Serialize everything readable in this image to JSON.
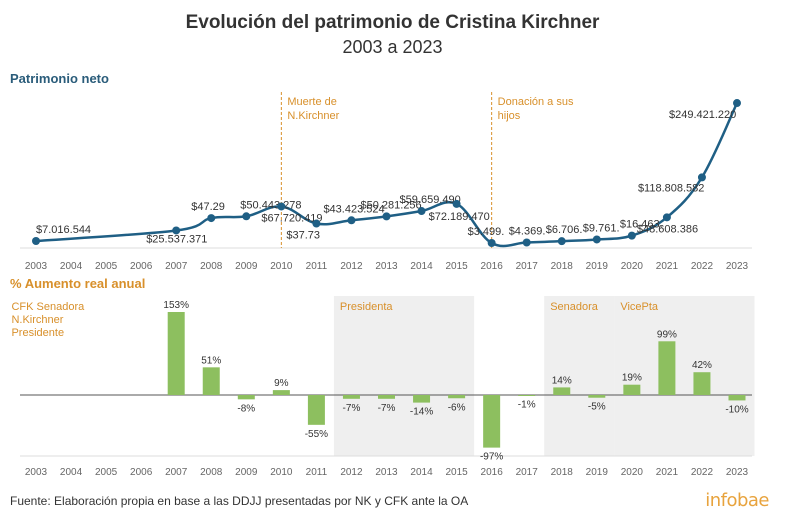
{
  "header": {
    "title": "Evolución del patrimonio de Cristina Kirchner",
    "subtitle": "2003 a 2023"
  },
  "footer": {
    "source": "Fuente: Elaboración propia en base a las DDJJ presentadas por NK y CFK ante la OA",
    "brand": "infobae"
  },
  "colors": {
    "line": "#1f5f85",
    "bar": "#8dbf5f",
    "accent": "#d8902b",
    "band": "#efefef"
  },
  "chart_data": [
    {
      "type": "line",
      "title": "Patrimonio neto",
      "x": [
        "2003",
        "2004",
        "2005",
        "2006",
        "2007",
        "2008",
        "2009",
        "2010",
        "2011",
        "2012",
        "2013",
        "2014",
        "2015",
        "2016",
        "2017",
        "2018",
        "2019",
        "2020",
        "2021",
        "2022",
        "2023"
      ],
      "points": [
        {
          "year": "2003",
          "value": 7016544,
          "label": "$7.016.544"
        },
        {
          "year": "2007",
          "value": 25537371,
          "label": "$25.537.371"
        },
        {
          "year": "2008",
          "value": 47291000,
          "label": "$47.29"
        },
        {
          "year": "2009",
          "value": 50443278,
          "label": "$50.443.278"
        },
        {
          "year": "2010",
          "value": 67720419,
          "label": "$67.720.419"
        },
        {
          "year": "2011",
          "value": 37731000,
          "label": "$37.73"
        },
        {
          "year": "2012",
          "value": 43423524,
          "label": "$43.423.524"
        },
        {
          "year": "2013",
          "value": 50281256,
          "label": "$50.281.256"
        },
        {
          "year": "2014",
          "value": 59659490,
          "label": "$59.659.490"
        },
        {
          "year": "2015",
          "value": 72189470,
          "label": "$72.189.470"
        },
        {
          "year": "2016",
          "value": 3499000,
          "label": "$3.499."
        },
        {
          "year": "2017",
          "value": 4369000,
          "label": "$4.369."
        },
        {
          "year": "2018",
          "value": 6706000,
          "label": "$6.706."
        },
        {
          "year": "2019",
          "value": 9761000,
          "label": "$9.761."
        },
        {
          "year": "2020",
          "value": 16463000,
          "label": "$16.463."
        },
        {
          "year": "2021",
          "value": 48608386,
          "label": "$48.608.386"
        },
        {
          "year": "2022",
          "value": 118808582,
          "label": "$118.808.582"
        },
        {
          "year": "2023",
          "value": 249421220,
          "label": "$249.421.220"
        }
      ],
      "ylim": [
        0,
        260000000
      ],
      "annotations": [
        {
          "year": "2010",
          "text": [
            "Muerte de",
            "N.Kirchner"
          ]
        },
        {
          "year": "2016",
          "text": [
            "Donación a sus",
            "hijos"
          ]
        }
      ]
    },
    {
      "type": "bar",
      "title": "% Aumento real anual",
      "categories": [
        "2003",
        "2004",
        "2005",
        "2006",
        "2007",
        "2008",
        "2009",
        "2010",
        "2011",
        "2012",
        "2013",
        "2014",
        "2015",
        "2016",
        "2017",
        "2018",
        "2019",
        "2020",
        "2021",
        "2022",
        "2023"
      ],
      "values": [
        null,
        null,
        null,
        null,
        153,
        51,
        -8,
        9,
        -55,
        -7,
        -7,
        -14,
        -6,
        -97,
        -1,
        14,
        -5,
        19,
        99,
        42,
        -10
      ],
      "labels": [
        "",
        "",
        "",
        "",
        "153%",
        "51%",
        "-8%",
        "9%",
        "-55%",
        "-7%",
        "-7%",
        "-14%",
        "-6%",
        "-97%",
        "-1%",
        "14%",
        "-5%",
        "19%",
        "99%",
        "42%",
        "-10%"
      ],
      "ylim": [
        -100,
        160
      ],
      "periods": [
        {
          "from": "2003",
          "to": "2007",
          "text": [
            "CFK Senadora",
            "N.Kirchner",
            "Presidente"
          ],
          "shaded": false
        },
        {
          "from": "2012",
          "to": "2015",
          "text": [
            "Presidenta"
          ],
          "shaded": true
        },
        {
          "from": "2018",
          "to": "2019",
          "text": [
            "Senadora"
          ],
          "shaded": true
        },
        {
          "from": "2020",
          "to": "2023",
          "text": [
            "VicePta"
          ],
          "shaded": true
        }
      ]
    }
  ],
  "sections": {
    "top_label": "Patrimonio neto",
    "bottom_label": "% Aumento real anual"
  }
}
